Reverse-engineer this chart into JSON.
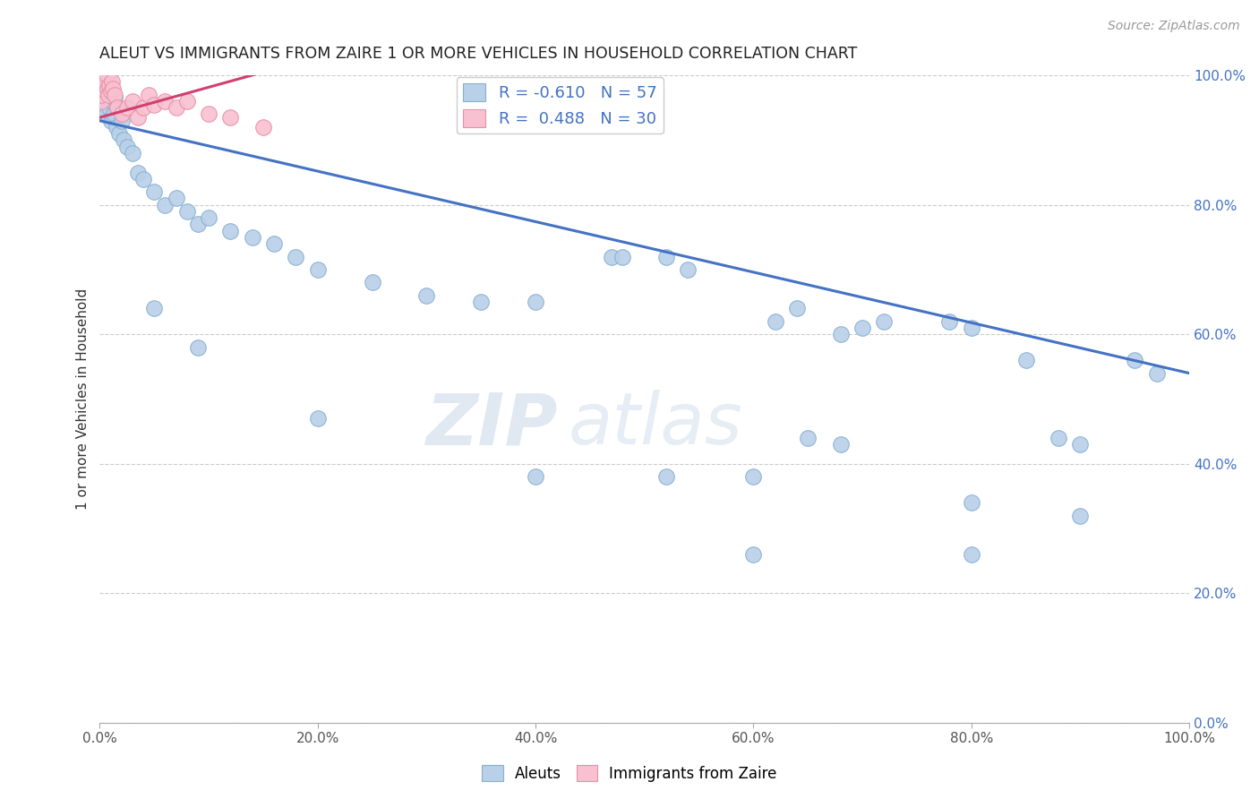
{
  "title": "ALEUT VS IMMIGRANTS FROM ZAIRE 1 OR MORE VEHICLES IN HOUSEHOLD CORRELATION CHART",
  "source": "Source: ZipAtlas.com",
  "ylabel": "1 or more Vehicles in Household",
  "x_ticks": [
    0.0,
    20.0,
    40.0,
    60.0,
    80.0,
    100.0
  ],
  "y_ticks": [
    0.0,
    20.0,
    40.0,
    60.0,
    80.0,
    100.0
  ],
  "blue_R": -0.61,
  "blue_N": 57,
  "pink_R": 0.488,
  "pink_N": 30,
  "blue_color": "#b8d0e8",
  "blue_edge": "#88b0d0",
  "pink_color": "#f8c0d0",
  "pink_edge": "#e890a8",
  "blue_line_color": "#4472c4",
  "pink_line_color": "#d04070",
  "background_color": "#ffffff",
  "grid_color": "#cccccc",
  "watermark_zip": "ZIP",
  "watermark_atlas": "atlas",
  "blue_x": [
    0.3,
    0.4,
    0.5,
    0.5,
    0.6,
    0.7,
    0.8,
    0.9,
    1.0,
    1.1,
    1.2,
    1.3,
    1.4,
    1.5,
    1.6,
    1.8,
    2.0,
    2.2,
    2.5,
    3.0,
    3.5,
    4.0,
    5.0,
    6.0,
    7.0,
    8.0,
    9.0,
    10.0,
    12.0,
    14.0,
    16.0,
    18.0,
    20.0,
    25.0,
    30.0,
    35.0,
    40.0,
    47.0,
    48.0,
    52.0,
    54.0,
    62.0,
    64.0,
    68.0,
    70.0,
    72.0,
    78.0,
    80.0,
    85.0,
    88.0,
    90.0,
    95.0,
    97.0,
    60.0,
    80.0,
    65.0,
    68.0
  ],
  "blue_y": [
    97.0,
    95.0,
    96.0,
    98.0,
    94.0,
    97.5,
    100.0,
    95.0,
    93.0,
    96.0,
    93.5,
    94.0,
    96.5,
    92.0,
    95.0,
    91.0,
    93.0,
    90.0,
    89.0,
    88.0,
    85.0,
    84.0,
    82.0,
    80.0,
    81.0,
    79.0,
    77.0,
    78.0,
    76.0,
    75.0,
    74.0,
    72.0,
    70.0,
    68.0,
    66.0,
    65.0,
    65.0,
    72.0,
    72.0,
    72.0,
    70.0,
    62.0,
    64.0,
    60.0,
    61.0,
    62.0,
    62.0,
    61.0,
    56.0,
    44.0,
    43.0,
    56.0,
    54.0,
    26.0,
    26.0,
    44.0,
    43.0
  ],
  "blue_x2": [
    5.0,
    9.0,
    20.0,
    40.0,
    52.0,
    60.0,
    80.0,
    90.0
  ],
  "blue_y2": [
    64.0,
    58.0,
    47.0,
    38.0,
    38.0,
    38.0,
    34.0,
    32.0
  ],
  "pink_x": [
    0.1,
    0.15,
    0.2,
    0.25,
    0.3,
    0.35,
    0.4,
    0.5,
    0.6,
    0.7,
    0.8,
    0.9,
    1.0,
    1.1,
    1.2,
    1.4,
    1.6,
    2.0,
    2.5,
    3.0,
    3.5,
    4.0,
    4.5,
    5.0,
    6.0,
    7.0,
    8.0,
    10.0,
    12.0,
    15.0
  ],
  "pink_y": [
    96.0,
    97.0,
    98.0,
    99.5,
    100.0,
    100.0,
    100.0,
    99.0,
    100.0,
    98.0,
    97.0,
    98.5,
    97.5,
    99.0,
    98.0,
    97.0,
    95.0,
    94.0,
    95.0,
    96.0,
    93.5,
    95.0,
    97.0,
    95.5,
    96.0,
    95.0,
    96.0,
    94.0,
    93.5,
    92.0
  ],
  "blue_line_x0": 0.0,
  "blue_line_y0": 93.0,
  "blue_line_x1": 100.0,
  "blue_line_y1": 54.0,
  "pink_line_x0": 0.0,
  "pink_line_y0": 93.5,
  "pink_line_x1": 15.0,
  "pink_line_y1": 100.5
}
